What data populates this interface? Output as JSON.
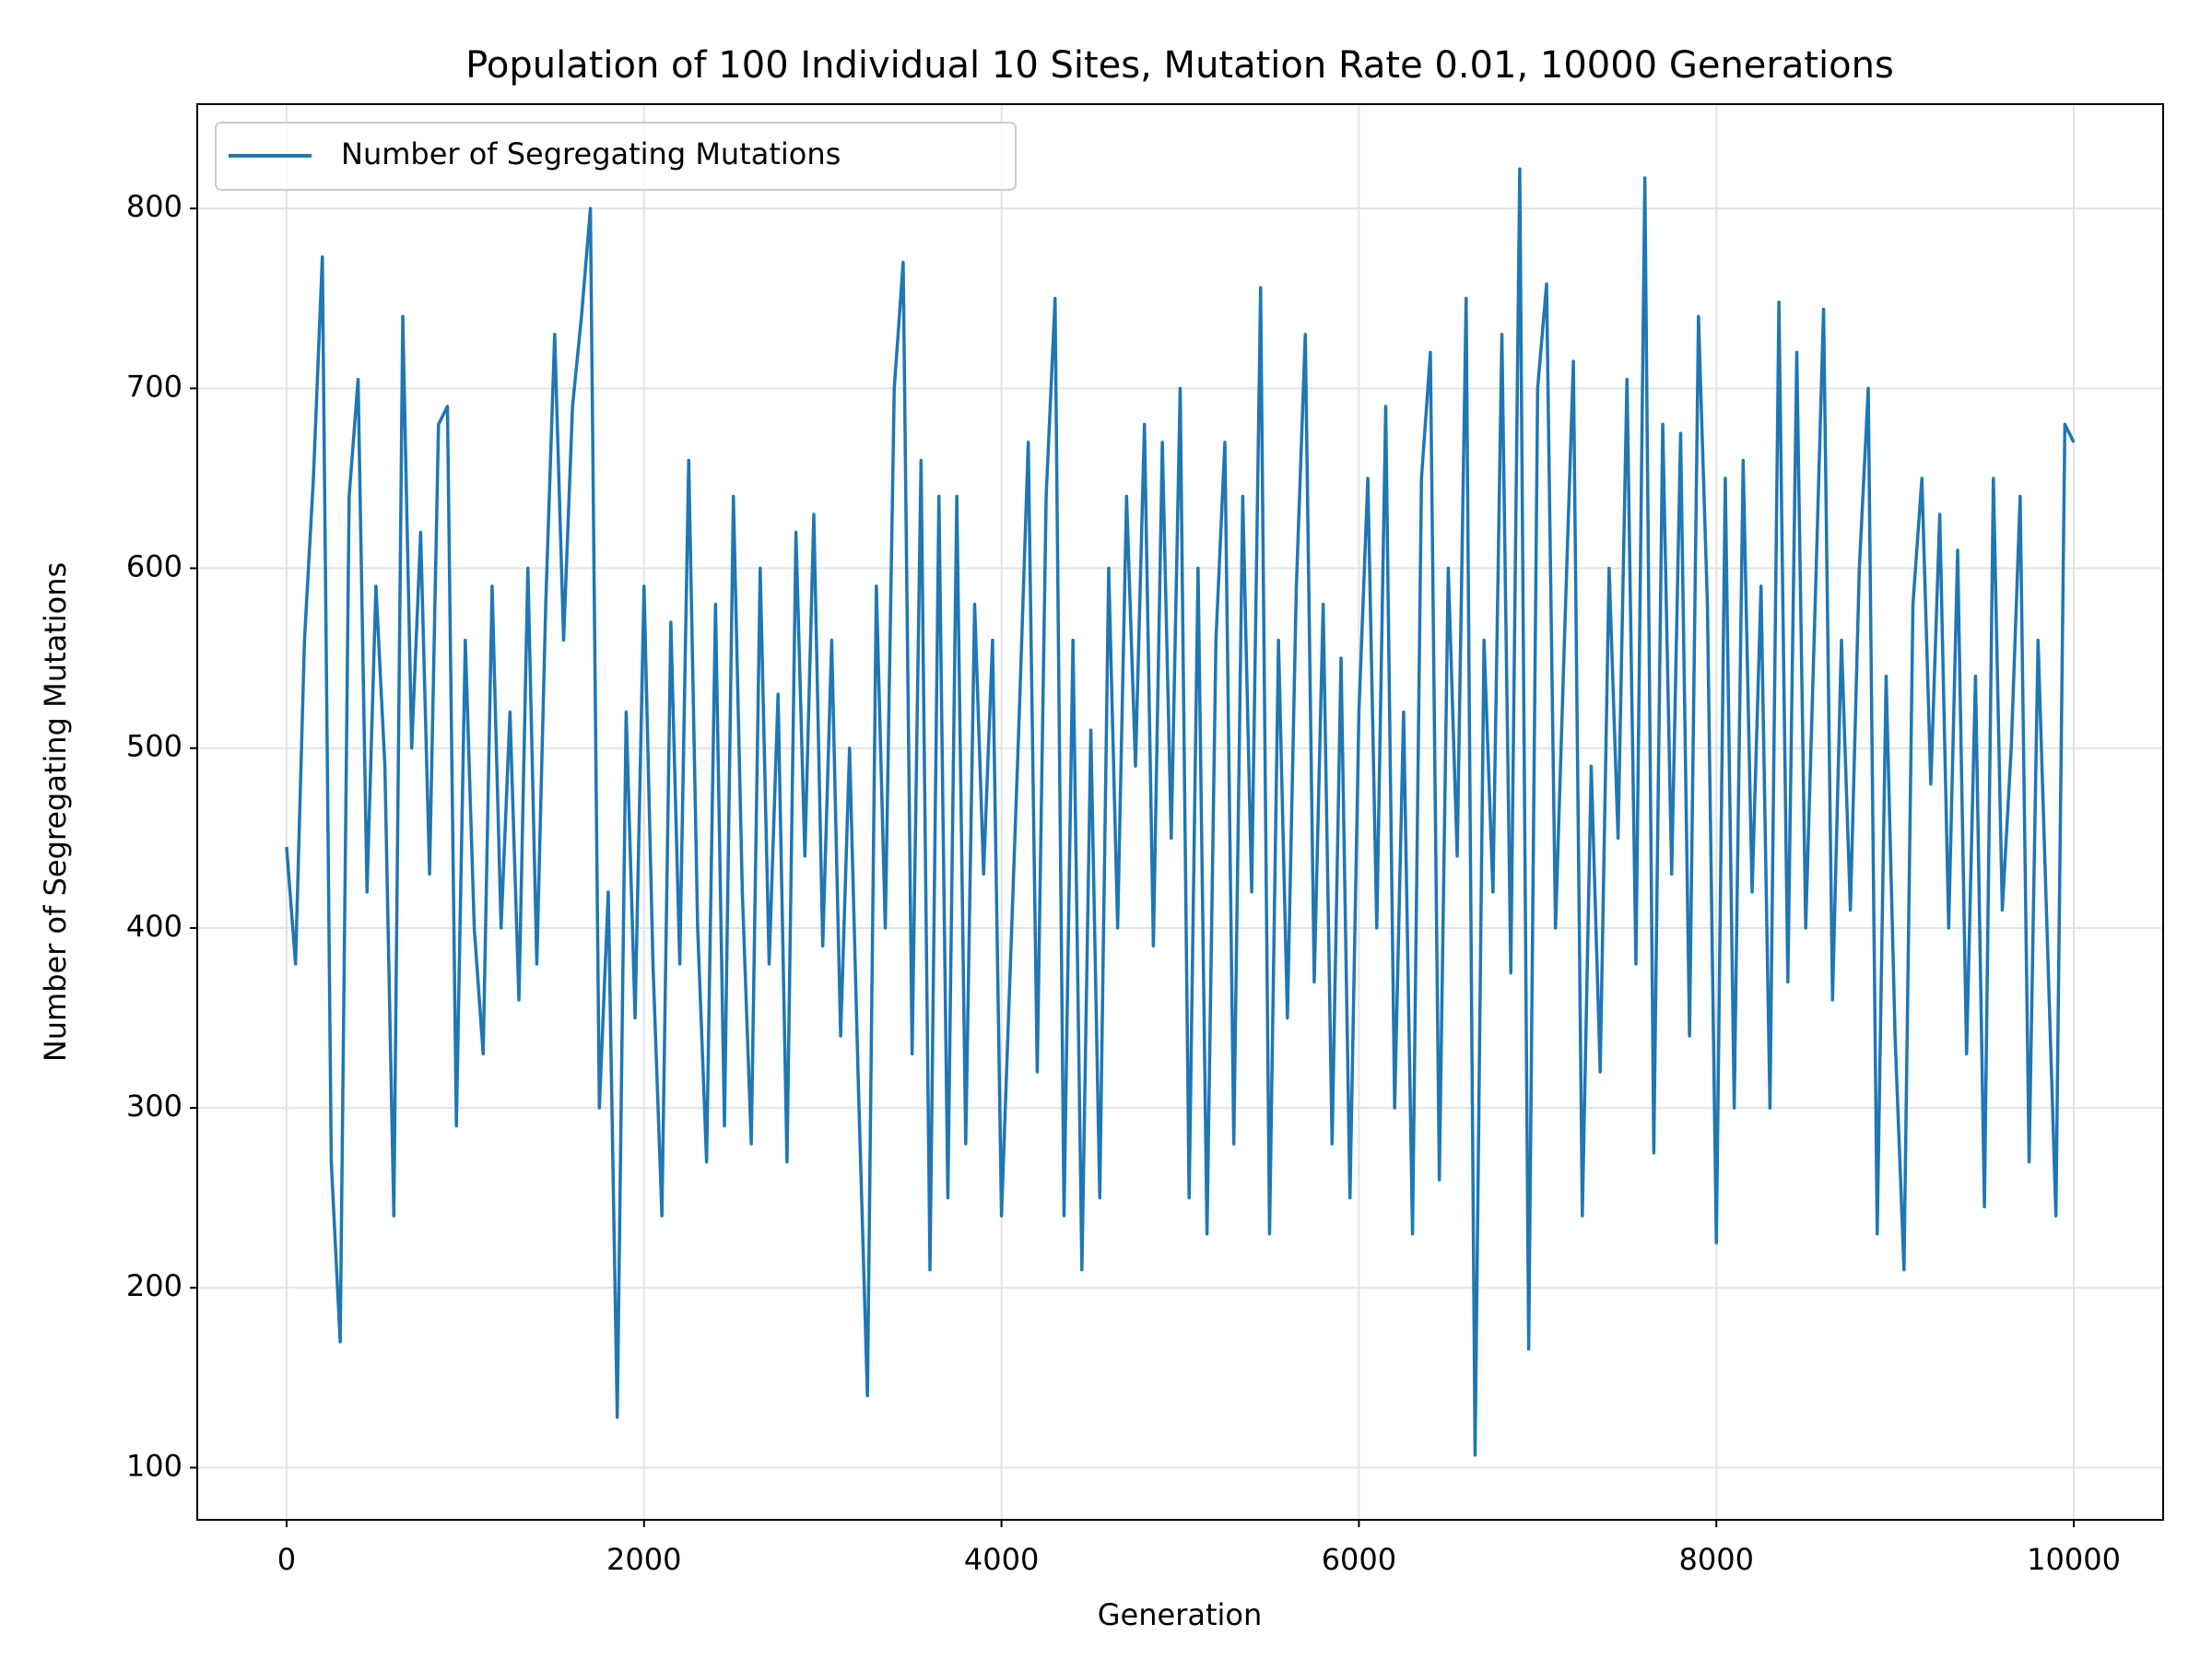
{
  "chart_data": {
    "type": "line",
    "title": "Population of 100 Individual 10 Sites, Mutation Rate 0.01, 10000 Generations",
    "xlabel": "Generation",
    "ylabel": "Number of Segregating Mutations",
    "x": [
      0,
      50,
      100,
      150,
      200,
      250,
      300,
      350,
      400,
      450,
      500,
      550,
      600,
      650,
      700,
      750,
      800,
      850,
      900,
      950,
      1000,
      1050,
      1100,
      1150,
      1200,
      1250,
      1300,
      1350,
      1400,
      1450,
      1500,
      1550,
      1600,
      1650,
      1700,
      1750,
      1800,
      1850,
      1900,
      1950,
      2000,
      2050,
      2100,
      2150,
      2200,
      2250,
      2300,
      2350,
      2400,
      2450,
      2500,
      2550,
      2600,
      2650,
      2700,
      2750,
      2800,
      2850,
      2900,
      2950,
      3000,
      3050,
      3100,
      3150,
      3200,
      3250,
      3300,
      3350,
      3400,
      3450,
      3500,
      3550,
      3600,
      3650,
      3700,
      3750,
      3800,
      3850,
      3900,
      3950,
      4000,
      4050,
      4100,
      4150,
      4200,
      4250,
      4300,
      4350,
      4400,
      4450,
      4500,
      4550,
      4600,
      4650,
      4700,
      4750,
      4800,
      4850,
      4900,
      4950,
      5000,
      5050,
      5100,
      5150,
      5200,
      5250,
      5300,
      5350,
      5400,
      5450,
      5500,
      5550,
      5600,
      5650,
      5700,
      5750,
      5800,
      5850,
      5900,
      5950,
      6000,
      6050,
      6100,
      6150,
      6200,
      6250,
      6300,
      6350,
      6400,
      6450,
      6500,
      6550,
      6600,
      6650,
      6700,
      6750,
      6800,
      6850,
      6900,
      6950,
      7000,
      7050,
      7100,
      7150,
      7200,
      7250,
      7300,
      7350,
      7400,
      7450,
      7500,
      7550,
      7600,
      7650,
      7700,
      7750,
      7800,
      7850,
      7900,
      7950,
      8000,
      8050,
      8100,
      8150,
      8200,
      8250,
      8300,
      8350,
      8400,
      8450,
      8500,
      8550,
      8600,
      8650,
      8700,
      8750,
      8800,
      8850,
      8900,
      8950,
      9000,
      9050,
      9100,
      9150,
      9200,
      9250,
      9300,
      9350,
      9400,
      9450,
      9500,
      9550,
      9600,
      9650,
      9700,
      9750,
      9800,
      9850,
      9900,
      9950,
      10000
    ],
    "series": [
      {
        "name": "Number of Segregating Mutations",
        "color": "#1f77b4",
        "values": [
          445,
          380,
          560,
          650,
          773,
          270,
          170,
          640,
          705,
          420,
          590,
          490,
          240,
          740,
          500,
          620,
          430,
          680,
          690,
          290,
          560,
          400,
          330,
          590,
          400,
          520,
          360,
          600,
          380,
          580,
          730,
          560,
          690,
          740,
          800,
          300,
          420,
          128,
          520,
          350,
          590,
          380,
          240,
          570,
          380,
          660,
          400,
          270,
          580,
          290,
          640,
          420,
          280,
          600,
          380,
          530,
          270,
          620,
          440,
          630,
          390,
          560,
          340,
          500,
          310,
          140,
          590,
          400,
          700,
          770,
          330,
          660,
          210,
          640,
          250,
          640,
          280,
          580,
          430,
          560,
          240,
          380,
          520,
          670,
          320,
          640,
          750,
          240,
          560,
          210,
          510,
          250,
          600,
          400,
          640,
          490,
          680,
          390,
          670,
          450,
          700,
          250,
          600,
          230,
          560,
          670,
          280,
          640,
          420,
          756,
          230,
          560,
          350,
          590,
          730,
          370,
          580,
          280,
          550,
          250,
          520,
          650,
          400,
          690,
          300,
          520,
          230,
          650,
          720,
          260,
          600,
          440,
          750,
          107,
          560,
          420,
          730,
          375,
          822,
          166,
          700,
          758,
          400,
          560,
          715,
          240,
          490,
          320,
          600,
          450,
          705,
          380,
          817,
          275,
          680,
          430,
          675,
          340,
          740,
          580,
          225,
          650,
          300,
          660,
          420,
          590,
          300,
          748,
          370,
          720,
          400,
          570,
          744,
          360,
          560,
          410,
          600,
          700,
          230,
          540,
          340,
          210,
          580,
          650,
          480,
          630,
          400,
          610,
          330,
          540,
          245,
          650,
          410,
          500,
          640,
          270,
          560,
          400,
          240,
          680,
          670
        ]
      }
    ],
    "xlim": [
      -500,
      10500
    ],
    "ylim": [
      71,
      858
    ],
    "xticks": [
      0,
      2000,
      4000,
      6000,
      8000,
      10000
    ],
    "yticks": [
      100,
      200,
      300,
      400,
      500,
      600,
      700,
      800
    ],
    "grid": true,
    "legend": "upper left"
  }
}
